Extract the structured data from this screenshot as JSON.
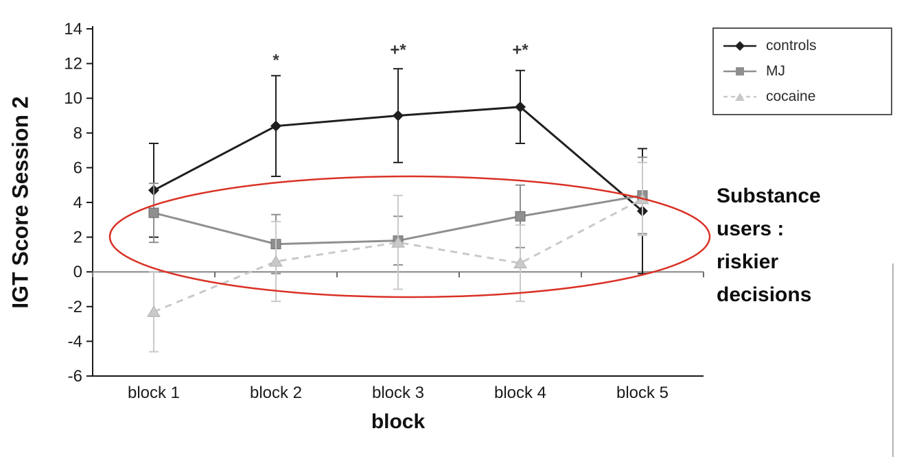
{
  "chart_data": {
    "type": "line",
    "title": "",
    "xlabel": "block",
    "ylabel": "IGT Score Session 2",
    "categories": [
      "block 1",
      "block 2",
      "block 3",
      "block 4",
      "block 5"
    ],
    "ylim": [
      -6,
      14
    ],
    "yticks": [
      14,
      12,
      10,
      8,
      6,
      4,
      2,
      0,
      -2,
      -4,
      -6
    ],
    "grid": false,
    "legend_position": "top-right",
    "zero_line": true,
    "series": [
      {
        "name": "controls",
        "marker": "diamond",
        "color": "#1f1f1f",
        "dash": null,
        "values": [
          4.7,
          8.4,
          9.0,
          9.5,
          3.5
        ],
        "errors": [
          2.7,
          2.9,
          2.7,
          2.1,
          3.6
        ]
      },
      {
        "name": "MJ",
        "marker": "square",
        "color": "#8f8f8f",
        "dash": null,
        "values": [
          3.4,
          1.6,
          1.8,
          3.2,
          4.4
        ],
        "errors": [
          1.7,
          1.7,
          1.4,
          1.8,
          2.2
        ]
      },
      {
        "name": "cocaine",
        "marker": "triangle",
        "color": "#c9c9c9",
        "dash": "10 8",
        "values": [
          -2.3,
          0.6,
          1.7,
          0.5,
          4.2
        ],
        "errors": [
          2.3,
          2.3,
          2.7,
          2.2,
          2.1
        ]
      }
    ],
    "significance_markers": [
      {
        "category_index": 1,
        "text": "*",
        "y": 12.2
      },
      {
        "category_index": 2,
        "text": "+*",
        "y": 12.8
      },
      {
        "category_index": 3,
        "text": "+*",
        "y": 12.8
      }
    ],
    "highlight_ellipse": {
      "color": "#da3125"
    }
  },
  "side_note": {
    "lines": [
      "Substance",
      "users :",
      "riskier",
      "decisions"
    ]
  }
}
